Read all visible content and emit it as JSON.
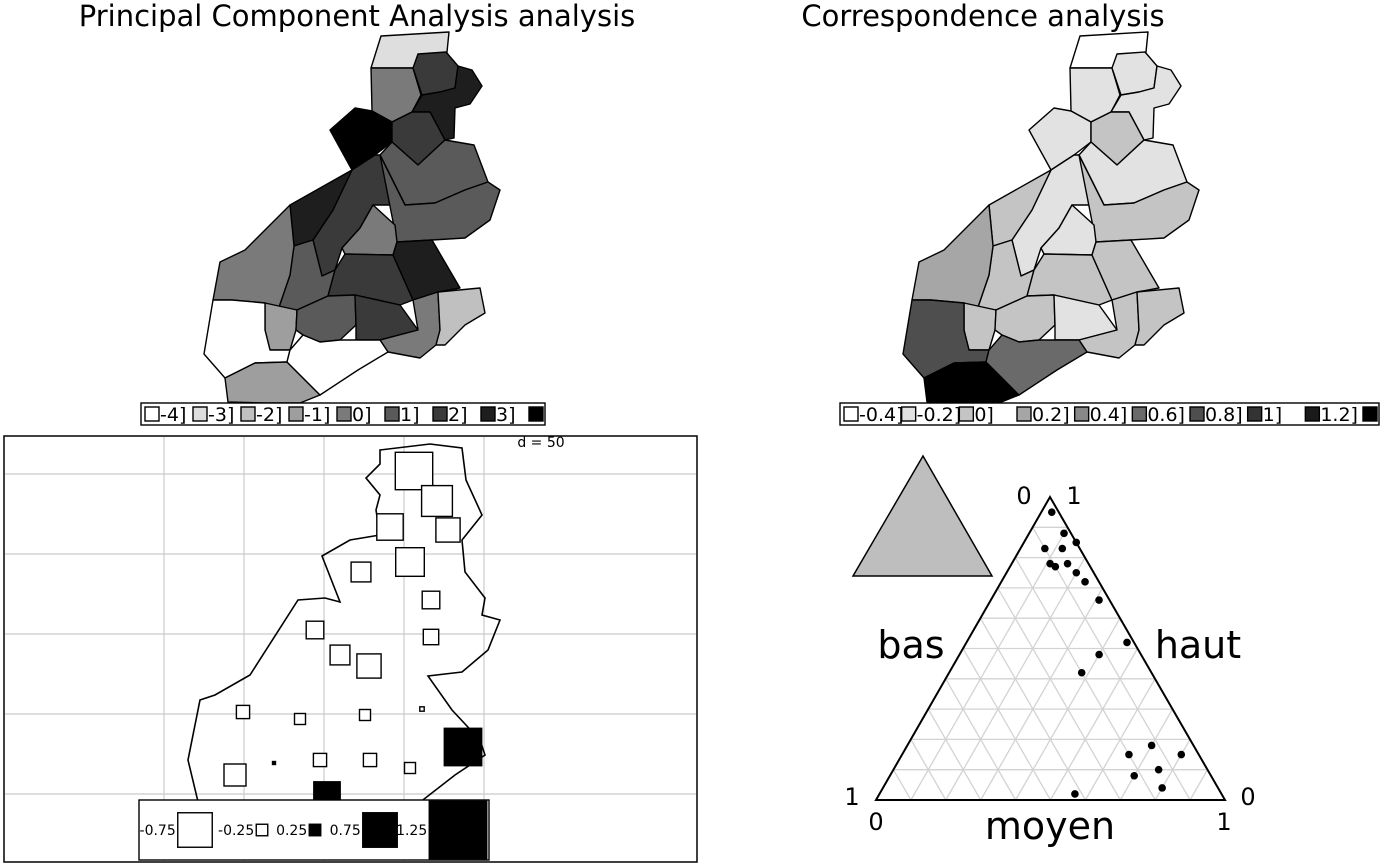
{
  "panels": {
    "pca_title": "Principal Component Analysis analysis",
    "ca_title": "Correspondence analysis"
  },
  "chart_data": [
    {
      "type": "choropleth",
      "title": "Principal Component Analysis analysis",
      "legend": {
        "placement": "bottom",
        "breaks": [
          "-4",
          "-3",
          "-2",
          "-1",
          "0",
          "1",
          "2",
          "3"
        ],
        "colors": [
          "#ffffff",
          "#dedede",
          "#c0c0c0",
          "#9e9e9e",
          "#7a7a7a",
          "#5a5a5a",
          "#3a3a3a",
          "#1e1e1e",
          "#000000"
        ]
      },
      "region_classes": [
        1,
        4,
        6,
        7,
        8,
        6,
        5,
        6,
        7,
        5,
        4,
        5,
        6,
        7,
        4,
        3,
        5,
        6,
        4,
        2,
        0,
        3,
        0
      ]
    },
    {
      "type": "choropleth",
      "title": "Correspondence analysis",
      "legend": {
        "placement": "bottom",
        "breaks": [
          "-0.4",
          "-0.2",
          "0",
          "0.2",
          "0.4",
          "0.6",
          "0.8",
          "1",
          "1.2"
        ],
        "colors": [
          "#ffffff",
          "#e2e2e2",
          "#c4c4c4",
          "#a6a6a6",
          "#888888",
          "#6a6a6a",
          "#4e4e4e",
          "#333333",
          "#1a1a1a",
          "#000000"
        ]
      },
      "region_classes": [
        0,
        1,
        1,
        1,
        1,
        2,
        1,
        1,
        2,
        2,
        1,
        2,
        2,
        2,
        3,
        2,
        2,
        1,
        2,
        2,
        6,
        9,
        5
      ]
    },
    {
      "type": "square_map",
      "grid_label": "d = 50",
      "legend": {
        "placement": "bottom",
        "labels": [
          "-0.75",
          "-0.25",
          "0.25",
          "0.75",
          "1.25"
        ],
        "sizes": [
          0.75,
          0.25,
          0.25,
          0.75,
          1.25
        ],
        "signs": [
          "neg",
          "neg",
          "pos",
          "pos",
          "pos"
        ]
      },
      "values": [
        -0.85,
        -0.7,
        -0.6,
        -0.55,
        -0.65,
        -0.45,
        -0.4,
        -0.4,
        -0.45,
        -0.55,
        -0.35,
        -0.3,
        -0.25,
        -0.25,
        -0.1,
        -0.5,
        0.05,
        -0.3,
        -0.3,
        -0.25,
        0.85,
        0.6
      ]
    },
    {
      "type": "ternary",
      "axes": {
        "left": "bas",
        "right": "haut",
        "bottom": "moyen"
      },
      "corner_ticks": {
        "top_left": "0",
        "top_right": "1",
        "bottom_left_outer": "1",
        "bottom_left_inner": "0",
        "bottom_right_outer": "0",
        "bottom_right_inner": "1"
      },
      "gridlines": 10,
      "points": [
        {
          "bas": 0.02,
          "moyen": 0.03,
          "haut": 0.95
        },
        {
          "bas": 0.02,
          "moyen": 0.1,
          "haut": 0.88
        },
        {
          "bas": 0.0,
          "moyen": 0.15,
          "haut": 0.85
        },
        {
          "bas": 0.05,
          "moyen": 0.12,
          "haut": 0.83
        },
        {
          "bas": 0.1,
          "moyen": 0.07,
          "haut": 0.83
        },
        {
          "bas": 0.11,
          "moyen": 0.11,
          "haut": 0.78
        },
        {
          "bas": 0.06,
          "moyen": 0.16,
          "haut": 0.78
        },
        {
          "bas": 0.1,
          "moyen": 0.13,
          "haut": 0.77
        },
        {
          "bas": 0.05,
          "moyen": 0.2,
          "haut": 0.75
        },
        {
          "bas": 0.04,
          "moyen": 0.24,
          "haut": 0.72
        },
        {
          "bas": 0.03,
          "moyen": 0.31,
          "haut": 0.66
        },
        {
          "bas": 0.02,
          "moyen": 0.46,
          "haut": 0.52
        },
        {
          "bas": 0.12,
          "moyen": 0.4,
          "haut": 0.48
        },
        {
          "bas": 0.2,
          "moyen": 0.38,
          "haut": 0.42
        },
        {
          "bas": 0.05,
          "moyen": 0.8,
          "haut": 0.15
        },
        {
          "bas": 0.12,
          "moyen": 0.7,
          "haut": 0.18
        },
        {
          "bas": 0.2,
          "moyen": 0.65,
          "haut": 0.15
        },
        {
          "bas": 0.14,
          "moyen": 0.76,
          "haut": 0.1
        },
        {
          "bas": 0.22,
          "moyen": 0.7,
          "haut": 0.08
        },
        {
          "bas": 0.16,
          "moyen": 0.8,
          "haut": 0.04
        },
        {
          "bas": 0.42,
          "moyen": 0.56,
          "haut": 0.02
        }
      ]
    }
  ]
}
